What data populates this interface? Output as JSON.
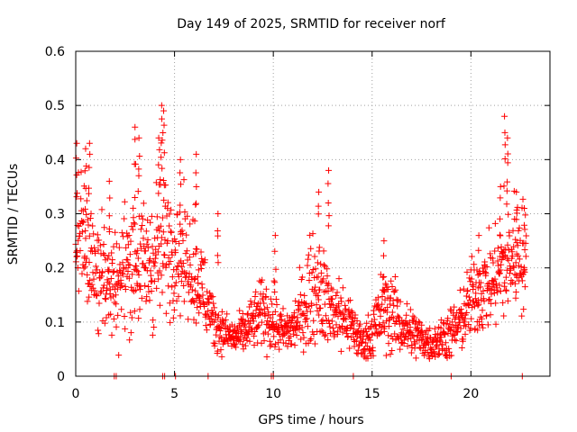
{
  "chart_data": {
    "type": "scatter",
    "title": "Day 149 of 2025, SRMTID for receiver norf",
    "xlabel": "GPS time / hours",
    "ylabel": "SRMTID / TECUs",
    "xlim": [
      0,
      24
    ],
    "ylim": [
      0,
      0.6
    ],
    "x_ticks": [
      0,
      5,
      10,
      15,
      20
    ],
    "x_tick_labels": [
      "0",
      "5",
      "10",
      "15",
      "20"
    ],
    "y_ticks": [
      0,
      0.1,
      0.2,
      0.3,
      0.4,
      0.5,
      0.6
    ],
    "y_tick_labels": [
      "0",
      "0.1",
      "0.2",
      "0.3",
      "0.4",
      "0.5",
      "0.6"
    ],
    "grid": true,
    "marker": "+",
    "color": "#ff0000",
    "series": [
      {
        "name": "SRMTID",
        "trend_hours": [
          0,
          0.5,
          1,
          1.5,
          2,
          2.5,
          3,
          3.5,
          4,
          4.5,
          5,
          5.5,
          6,
          6.5,
          7,
          7.5,
          8,
          8.5,
          9,
          9.5,
          10,
          10.5,
          11,
          11.5,
          12,
          12.5,
          13,
          13.5,
          14,
          14.5,
          15,
          15.5,
          16,
          16.5,
          17,
          17.5,
          18,
          18.5,
          19,
          19.5,
          20,
          20.5,
          21,
          21.5,
          22,
          22.5,
          22.8
        ],
        "trend_values": [
          0.28,
          0.24,
          0.2,
          0.17,
          0.17,
          0.2,
          0.22,
          0.2,
          0.22,
          0.25,
          0.24,
          0.22,
          0.2,
          0.15,
          0.1,
          0.08,
          0.07,
          0.08,
          0.1,
          0.12,
          0.1,
          0.08,
          0.09,
          0.12,
          0.17,
          0.15,
          0.12,
          0.11,
          0.09,
          0.06,
          0.08,
          0.12,
          0.12,
          0.09,
          0.08,
          0.07,
          0.06,
          0.07,
          0.08,
          0.1,
          0.14,
          0.16,
          0.17,
          0.19,
          0.22,
          0.24,
          0.2
        ],
        "spread": [
          0.08,
          0.08,
          0.07,
          0.06,
          0.06,
          0.07,
          0.08,
          0.07,
          0.08,
          0.08,
          0.07,
          0.06,
          0.06,
          0.05,
          0.03,
          0.025,
          0.02,
          0.025,
          0.03,
          0.04,
          0.035,
          0.025,
          0.03,
          0.045,
          0.06,
          0.05,
          0.045,
          0.04,
          0.03,
          0.02,
          0.03,
          0.045,
          0.045,
          0.03,
          0.03,
          0.025,
          0.02,
          0.025,
          0.03,
          0.035,
          0.045,
          0.05,
          0.05,
          0.06,
          0.07,
          0.07,
          0.06
        ],
        "peaks": [
          {
            "x": 0.05,
            "y": 0.43
          },
          {
            "x": 0.5,
            "y": 0.42
          },
          {
            "x": 0.7,
            "y": 0.43
          },
          {
            "x": 1.7,
            "y": 0.36
          },
          {
            "x": 3.0,
            "y": 0.46
          },
          {
            "x": 3.2,
            "y": 0.44
          },
          {
            "x": 4.2,
            "y": 0.44
          },
          {
            "x": 4.35,
            "y": 0.5
          },
          {
            "x": 4.45,
            "y": 0.49
          },
          {
            "x": 5.3,
            "y": 0.4
          },
          {
            "x": 6.1,
            "y": 0.41
          },
          {
            "x": 7.2,
            "y": 0.3
          },
          {
            "x": 10.1,
            "y": 0.26
          },
          {
            "x": 12.3,
            "y": 0.34
          },
          {
            "x": 12.8,
            "y": 0.38
          },
          {
            "x": 15.6,
            "y": 0.25
          },
          {
            "x": 20.4,
            "y": 0.26
          },
          {
            "x": 21.5,
            "y": 0.35
          },
          {
            "x": 21.7,
            "y": 0.48
          },
          {
            "x": 21.85,
            "y": 0.44
          },
          {
            "x": 22.3,
            "y": 0.34
          },
          {
            "x": 22.7,
            "y": 0.31
          }
        ],
        "zero_hours": [
          1.95,
          2.05,
          4.4,
          4.5,
          5.05,
          6.7,
          9.9,
          10.0,
          14.05,
          19.0,
          22.6
        ]
      }
    ]
  }
}
